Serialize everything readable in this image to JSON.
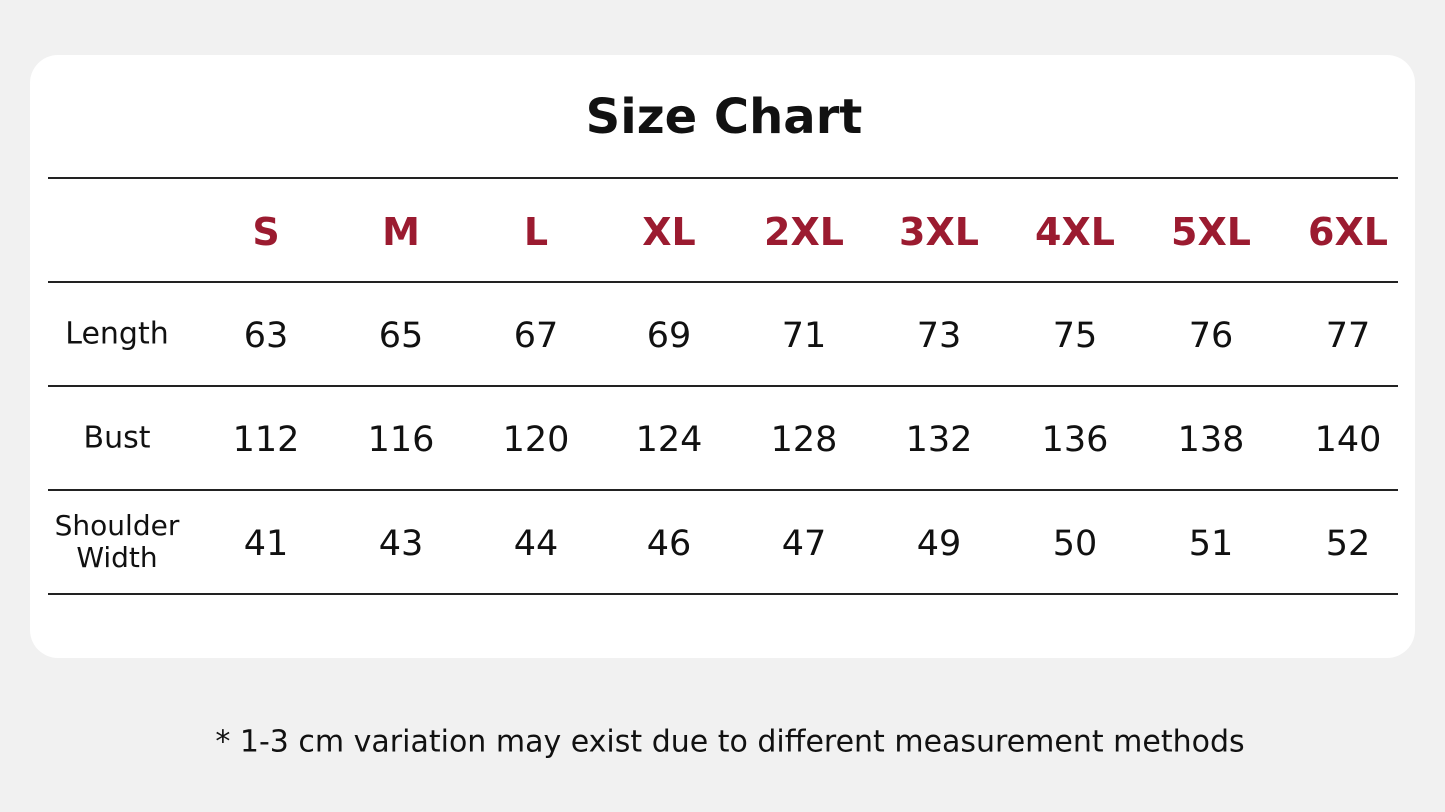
{
  "title": "Size Chart",
  "table": {
    "header": [
      "S",
      "M",
      "L",
      "XL",
      "2XL",
      "3XL",
      "4XL",
      "5XL",
      "6XL"
    ],
    "rows": [
      {
        "label": "Length",
        "values": [
          63,
          65,
          67,
          69,
          71,
          73,
          75,
          76,
          77
        ]
      },
      {
        "label": "Bust",
        "values": [
          112,
          116,
          120,
          124,
          128,
          132,
          136,
          138,
          140
        ]
      },
      {
        "label": "Shoulder Width",
        "values": [
          41,
          43,
          44,
          46,
          47,
          49,
          50,
          51,
          52
        ]
      }
    ]
  },
  "note": "* 1-3 cm variation may exist due to different measurement methods"
}
